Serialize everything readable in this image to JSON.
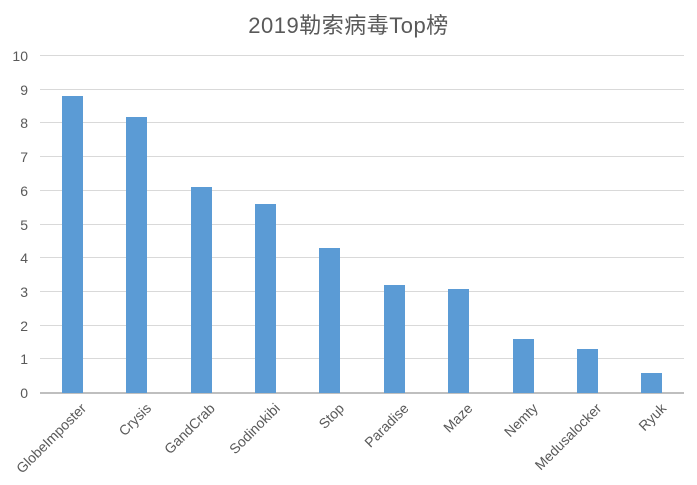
{
  "chart_data": {
    "type": "bar",
    "title": "2019勒索病毒Top榜",
    "categories": [
      "GlobeImposter",
      "Crysis",
      "GandCrab",
      "Sodinokibi",
      "Stop",
      "Paradise",
      "Maze",
      "Nemty",
      "Medusalocker",
      "Ryuk"
    ],
    "values": [
      8.8,
      8.2,
      6.1,
      5.6,
      4.3,
      3.2,
      3.1,
      1.6,
      1.3,
      0.6
    ],
    "xlabel": "",
    "ylabel": "",
    "ylim": [
      0,
      10
    ],
    "yticks": [
      0,
      1,
      2,
      3,
      4,
      5,
      6,
      7,
      8,
      9,
      10
    ],
    "grid": true,
    "legend_position": "none",
    "bar_color": "#5b9bd5",
    "gridline_color": "#d9d9d9",
    "axis_line_color": "#bfbfbf",
    "text_color": "#595959"
  }
}
